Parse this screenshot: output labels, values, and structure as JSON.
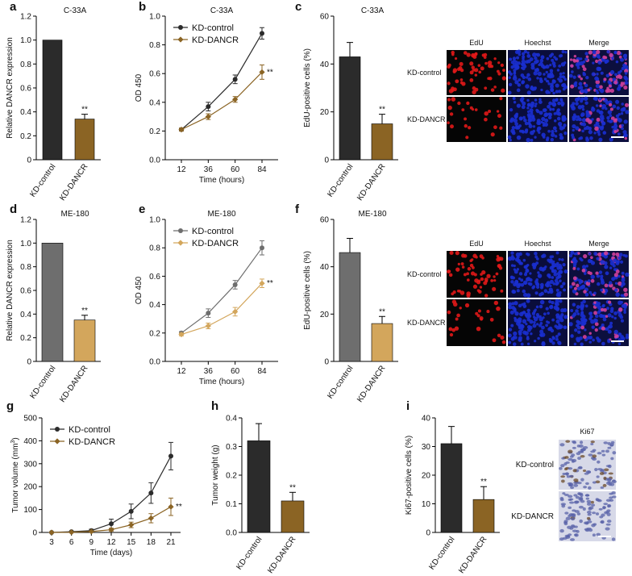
{
  "panels": {
    "a": {
      "letter": "a"
    },
    "b": {
      "letter": "b"
    },
    "c": {
      "letter": "c"
    },
    "d": {
      "letter": "d"
    },
    "e": {
      "letter": "e"
    },
    "f": {
      "letter": "f"
    },
    "g": {
      "letter": "g"
    },
    "h": {
      "letter": "h"
    },
    "i": {
      "letter": "i"
    }
  },
  "colors": {
    "c33a_control": "#2b2b2b",
    "c33a_dancr": "#8b6424",
    "me180_control": "#6e6e6e",
    "me180_dancr": "#d3a65c",
    "tumor_control": "#2b2b2b",
    "tumor_dancr": "#8b6424",
    "edu_red": "#e01818",
    "hoechst_blue": "#1a2fd0",
    "ihc_bg": "#d7d9e8"
  },
  "chart_data": [
    {
      "id": "a",
      "type": "bar",
      "title": "C-33A",
      "ylabel": "Relative DANCR expression",
      "ylim": [
        0,
        1.2
      ],
      "yticks": [
        "0",
        "0.2",
        "0.4",
        "0.6",
        "0.8",
        "1.0",
        "1.2"
      ],
      "categories": [
        "KD-control",
        "KD-DANCR"
      ],
      "values": [
        1.0,
        0.34
      ],
      "errors": [
        0,
        0.04
      ],
      "annotation": "**"
    },
    {
      "id": "b",
      "type": "line",
      "title": "C-33A",
      "xlabel": "Time (hours)",
      "ylabel": "OD 450",
      "ylim": [
        0.0,
        1.0
      ],
      "yticks": [
        "0.0",
        "0.2",
        "0.4",
        "0.6",
        "0.8",
        "1.0"
      ],
      "x": [
        "12",
        "36",
        "60",
        "84"
      ],
      "legend": "top-left",
      "series": [
        {
          "name": "KD-control",
          "values": [
            0.21,
            0.37,
            0.56,
            0.88
          ],
          "errors": [
            0.01,
            0.03,
            0.03,
            0.04
          ]
        },
        {
          "name": "KD-DANCR",
          "values": [
            0.21,
            0.3,
            0.42,
            0.61
          ],
          "errors": [
            0.01,
            0.02,
            0.02,
            0.05
          ]
        }
      ],
      "annotation": "**"
    },
    {
      "id": "c",
      "type": "bar",
      "title": "C-33A",
      "ylabel": "EdU-positive cells (%)",
      "ylim": [
        0,
        60
      ],
      "yticks": [
        "0",
        "20",
        "40",
        "60"
      ],
      "categories": [
        "KD-control",
        "KD-DANCR"
      ],
      "values": [
        43,
        15
      ],
      "errors": [
        6,
        4
      ],
      "annotation": "**"
    },
    {
      "id": "d",
      "type": "bar",
      "title": "ME-180",
      "ylabel": "Relative DANCR expression",
      "ylim": [
        0,
        1.2
      ],
      "yticks": [
        "0",
        "0.2",
        "0.4",
        "0.6",
        "0.8",
        "1.0",
        "1.2"
      ],
      "categories": [
        "KD-control",
        "KD-DANCR"
      ],
      "values": [
        1.0,
        0.35
      ],
      "errors": [
        0,
        0.04
      ],
      "annotation": "**"
    },
    {
      "id": "e",
      "type": "line",
      "title": "ME-180",
      "xlabel": "Time (hours)",
      "ylabel": "OD 450",
      "ylim": [
        0.0,
        1.0
      ],
      "yticks": [
        "0.0",
        "0.2",
        "0.4",
        "0.6",
        "0.8",
        "1.0"
      ],
      "x": [
        "12",
        "36",
        "60",
        "84"
      ],
      "legend": "top-left",
      "series": [
        {
          "name": "KD-control",
          "values": [
            0.2,
            0.34,
            0.54,
            0.8
          ],
          "errors": [
            0.01,
            0.03,
            0.03,
            0.05
          ]
        },
        {
          "name": "KD-DANCR",
          "values": [
            0.19,
            0.25,
            0.35,
            0.55
          ],
          "errors": [
            0.01,
            0.02,
            0.03,
            0.03
          ]
        }
      ],
      "annotation": "**"
    },
    {
      "id": "f",
      "type": "bar",
      "title": "ME-180",
      "ylabel": "EdU-positive cells (%)",
      "ylim": [
        0,
        60
      ],
      "yticks": [
        "0",
        "20",
        "40",
        "60"
      ],
      "categories": [
        "KD-control",
        "KD-DANCR"
      ],
      "values": [
        46,
        16
      ],
      "errors": [
        6,
        3
      ],
      "annotation": "**"
    },
    {
      "id": "g",
      "type": "line",
      "title": "",
      "xlabel": "Time (days)",
      "ylabel": "Tumor volume (mm",
      "ylabel_sup": "3",
      "ylabel_end": ")",
      "ylim": [
        0,
        500
      ],
      "yticks": [
        "0",
        "100",
        "200",
        "300",
        "400",
        "500"
      ],
      "x": [
        "3",
        "6",
        "9",
        "12",
        "15",
        "18",
        "21"
      ],
      "legend": "top-left",
      "series": [
        {
          "name": "KD-control",
          "values": [
            0,
            3,
            8,
            38,
            92,
            172,
            333
          ],
          "errors": [
            0,
            2,
            6,
            20,
            32,
            45,
            60
          ]
        },
        {
          "name": "KD-DANCR",
          "values": [
            0,
            1,
            4,
            12,
            33,
            62,
            112
          ],
          "errors": [
            0,
            1,
            2,
            6,
            12,
            20,
            38
          ]
        }
      ],
      "annotation": "**"
    },
    {
      "id": "h",
      "type": "bar",
      "title": "",
      "ylabel": "Tumor weight (g)",
      "ylim": [
        0.0,
        0.4
      ],
      "yticks": [
        "0.0",
        "0.1",
        "0.2",
        "0.3",
        "0.4"
      ],
      "categories": [
        "KD-control",
        "KD-DANCR"
      ],
      "values": [
        0.32,
        0.11
      ],
      "errors": [
        0.06,
        0.03
      ],
      "annotation": "**"
    },
    {
      "id": "i",
      "type": "bar",
      "title": "",
      "ylabel": "Ki67-positive cells (%)",
      "ylim": [
        0,
        40
      ],
      "yticks": [
        "0",
        "10",
        "20",
        "30",
        "40"
      ],
      "categories": [
        "KD-control",
        "KD-DANCR"
      ],
      "values": [
        31,
        11.5
      ],
      "errors": [
        6,
        4.5
      ],
      "annotation": "**"
    }
  ],
  "micrographs": {
    "c": {
      "columns": [
        "EdU",
        "Hoechst",
        "Merge"
      ],
      "rows": [
        "KD-control",
        "KD-DANCR"
      ]
    },
    "f": {
      "columns": [
        "EdU",
        "Hoechst",
        "Merge"
      ],
      "rows": [
        "KD-control",
        "KD-DANCR"
      ]
    },
    "i": {
      "columns": [
        "Ki67"
      ],
      "rows": [
        "KD-control",
        "KD-DANCR"
      ]
    }
  }
}
